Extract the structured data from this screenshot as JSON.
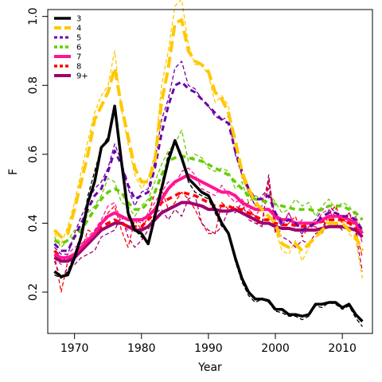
{
  "chart_data": {
    "type": "line",
    "xlabel": "Year",
    "ylabel": "F",
    "xlim": [
      1966,
      2014.5
    ],
    "ylim": [
      0.08,
      1.02
    ],
    "xticks": [
      1970,
      1980,
      1990,
      2000,
      2010
    ],
    "yticks": [
      0.2,
      0.4,
      0.6,
      0.8,
      1.0
    ],
    "xtick_labels": [
      "1970",
      "1980",
      "1990",
      "2000",
      "2010"
    ],
    "ytick_labels": [
      "0.2",
      "0.4",
      "0.6",
      "0.8",
      "1.0"
    ],
    "legend_position": "top-left",
    "grid": false,
    "x": [
      1967,
      1968,
      1969,
      1970,
      1971,
      1972,
      1973,
      1974,
      1975,
      1976,
      1977,
      1978,
      1979,
      1980,
      1981,
      1982,
      1983,
      1984,
      1985,
      1986,
      1987,
      1988,
      1989,
      1990,
      1991,
      1992,
      1993,
      1994,
      1995,
      1996,
      1997,
      1998,
      1999,
      2000,
      2001,
      2002,
      2003,
      2004,
      2005,
      2006,
      2007,
      2008,
      2009,
      2010,
      2011,
      2012,
      2013
    ],
    "series": [
      {
        "name": "3",
        "color": "#000000",
        "dash": "solid",
        "width": 3.5,
        "values": [
          0.26,
          0.245,
          0.25,
          0.3,
          0.36,
          0.46,
          0.52,
          0.62,
          0.64,
          0.74,
          0.58,
          0.43,
          0.38,
          0.37,
          0.34,
          0.42,
          0.5,
          0.58,
          0.64,
          0.59,
          0.53,
          0.51,
          0.49,
          0.48,
          0.44,
          0.4,
          0.37,
          0.3,
          0.24,
          0.2,
          0.18,
          0.18,
          0.175,
          0.15,
          0.15,
          0.135,
          0.135,
          0.13,
          0.135,
          0.165,
          0.165,
          0.17,
          0.17,
          0.155,
          0.165,
          0.135,
          0.115
        ]
      },
      {
        "name": "4",
        "color": "#FFC800",
        "dash": "long",
        "width": 4,
        "values": [
          0.38,
          0.36,
          0.37,
          0.44,
          0.52,
          0.6,
          0.7,
          0.74,
          0.78,
          0.85,
          0.74,
          0.65,
          0.56,
          0.52,
          0.52,
          0.58,
          0.75,
          0.85,
          0.98,
          0.99,
          0.9,
          0.87,
          0.86,
          0.84,
          0.78,
          0.76,
          0.72,
          0.64,
          0.55,
          0.5,
          0.46,
          0.44,
          0.42,
          0.4,
          0.34,
          0.33,
          0.34,
          0.32,
          0.34,
          0.36,
          0.38,
          0.4,
          0.4,
          0.4,
          0.38,
          0.36,
          0.32
        ]
      },
      {
        "name": "5",
        "color": "#6A00A8",
        "dash": "dash",
        "width": 3,
        "values": [
          0.34,
          0.32,
          0.32,
          0.36,
          0.4,
          0.44,
          0.48,
          0.5,
          0.55,
          0.61,
          0.57,
          0.51,
          0.47,
          0.48,
          0.49,
          0.56,
          0.66,
          0.74,
          0.8,
          0.81,
          0.79,
          0.78,
          0.76,
          0.74,
          0.72,
          0.7,
          0.69,
          0.61,
          0.55,
          0.5,
          0.47,
          0.47,
          0.48,
          0.43,
          0.4,
          0.41,
          0.4,
          0.38,
          0.39,
          0.4,
          0.42,
          0.43,
          0.43,
          0.42,
          0.42,
          0.41,
          0.38
        ]
      },
      {
        "name": "6",
        "color": "#66CC00",
        "dash": "dash",
        "width": 3.5,
        "values": [
          0.35,
          0.34,
          0.35,
          0.36,
          0.38,
          0.41,
          0.44,
          0.47,
          0.49,
          0.5,
          0.49,
          0.46,
          0.44,
          0.44,
          0.46,
          0.49,
          0.54,
          0.58,
          0.59,
          0.595,
          0.59,
          0.585,
          0.58,
          0.57,
          0.56,
          0.55,
          0.54,
          0.52,
          0.5,
          0.48,
          0.47,
          0.465,
          0.46,
          0.455,
          0.45,
          0.445,
          0.44,
          0.44,
          0.44,
          0.435,
          0.44,
          0.45,
          0.45,
          0.45,
          0.44,
          0.43,
          0.41
        ]
      },
      {
        "name": "7",
        "color": "#FF1493",
        "dash": "solid",
        "width": 4,
        "values": [
          0.31,
          0.3,
          0.3,
          0.31,
          0.33,
          0.35,
          0.37,
          0.4,
          0.42,
          0.43,
          0.42,
          0.41,
          0.41,
          0.41,
          0.42,
          0.44,
          0.47,
          0.5,
          0.52,
          0.53,
          0.54,
          0.53,
          0.52,
          0.51,
          0.5,
          0.49,
          0.49,
          0.48,
          0.46,
          0.45,
          0.44,
          0.44,
          0.44,
          0.42,
          0.41,
          0.41,
          0.4,
          0.4,
          0.4,
          0.4,
          0.41,
          0.42,
          0.42,
          0.42,
          0.41,
          0.4,
          0.37
        ]
      },
      {
        "name": "8",
        "color": "#FF0000",
        "dash": "dash",
        "width": 3.5,
        "values": [
          0.32,
          0.3,
          0.3,
          0.31,
          0.33,
          0.35,
          0.37,
          0.39,
          0.4,
          0.41,
          0.4,
          0.39,
          0.39,
          0.39,
          0.41,
          0.43,
          0.46,
          0.47,
          0.48,
          0.49,
          0.485,
          0.48,
          0.47,
          0.46,
          0.45,
          0.45,
          0.45,
          0.44,
          0.44,
          0.43,
          0.42,
          0.41,
          0.41,
          0.4,
          0.395,
          0.395,
          0.395,
          0.39,
          0.395,
          0.4,
          0.405,
          0.41,
          0.41,
          0.41,
          0.4,
          0.39,
          0.37
        ]
      },
      {
        "name": "9+",
        "color": "#A0006E",
        "dash": "solid",
        "width": 4,
        "values": [
          0.3,
          0.29,
          0.29,
          0.3,
          0.32,
          0.34,
          0.36,
          0.38,
          0.39,
          0.4,
          0.4,
          0.39,
          0.38,
          0.38,
          0.39,
          0.41,
          0.43,
          0.44,
          0.45,
          0.46,
          0.46,
          0.455,
          0.45,
          0.44,
          0.44,
          0.435,
          0.435,
          0.44,
          0.43,
          0.42,
          0.41,
          0.4,
          0.4,
          0.39,
          0.385,
          0.385,
          0.38,
          0.38,
          0.38,
          0.38,
          0.385,
          0.39,
          0.39,
          0.39,
          0.385,
          0.38,
          0.36
        ]
      }
    ],
    "observed_series": [
      {
        "name": "3",
        "color": "#000000",
        "values": [
          0.25,
          0.24,
          0.26,
          0.31,
          0.37,
          0.48,
          0.55,
          0.62,
          0.65,
          0.74,
          0.57,
          0.42,
          0.38,
          0.36,
          0.34,
          0.43,
          0.51,
          0.6,
          0.64,
          0.6,
          0.52,
          0.49,
          0.48,
          0.47,
          0.43,
          0.39,
          0.37,
          0.29,
          0.23,
          0.19,
          0.17,
          0.18,
          0.17,
          0.145,
          0.14,
          0.13,
          0.13,
          0.12,
          0.13,
          0.16,
          0.155,
          0.17,
          0.165,
          0.15,
          0.16,
          0.125,
          0.1
        ]
      },
      {
        "name": "4",
        "color": "#FFC800",
        "values": [
          0.37,
          0.34,
          0.39,
          0.46,
          0.55,
          0.64,
          0.72,
          0.77,
          0.8,
          0.9,
          0.73,
          0.63,
          0.54,
          0.5,
          0.53,
          0.6,
          0.8,
          0.9,
          1.03,
          1.05,
          0.92,
          0.86,
          0.86,
          0.83,
          0.75,
          0.77,
          0.74,
          0.62,
          0.53,
          0.49,
          0.45,
          0.43,
          0.41,
          0.38,
          0.32,
          0.31,
          0.35,
          0.29,
          0.33,
          0.36,
          0.37,
          0.42,
          0.39,
          0.41,
          0.37,
          0.35,
          0.24
        ]
      },
      {
        "name": "5",
        "color": "#6A00A8",
        "values": [
          0.33,
          0.31,
          0.31,
          0.37,
          0.42,
          0.46,
          0.5,
          0.52,
          0.56,
          0.63,
          0.58,
          0.5,
          0.45,
          0.49,
          0.5,
          0.58,
          0.7,
          0.76,
          0.85,
          0.87,
          0.8,
          0.79,
          0.76,
          0.74,
          0.71,
          0.7,
          0.71,
          0.6,
          0.54,
          0.49,
          0.45,
          0.48,
          0.5,
          0.42,
          0.39,
          0.43,
          0.38,
          0.37,
          0.4,
          0.41,
          0.44,
          0.45,
          0.43,
          0.41,
          0.43,
          0.4,
          0.36
        ]
      },
      {
        "name": "6",
        "color": "#66CC00",
        "values": [
          0.36,
          0.33,
          0.35,
          0.38,
          0.37,
          0.43,
          0.45,
          0.48,
          0.53,
          0.52,
          0.46,
          0.45,
          0.42,
          0.45,
          0.47,
          0.52,
          0.57,
          0.61,
          0.63,
          0.67,
          0.58,
          0.6,
          0.59,
          0.56,
          0.55,
          0.56,
          0.55,
          0.5,
          0.52,
          0.46,
          0.48,
          0.47,
          0.49,
          0.46,
          0.43,
          0.44,
          0.47,
          0.45,
          0.46,
          0.42,
          0.45,
          0.47,
          0.44,
          0.46,
          0.45,
          0.42,
          0.38
        ]
      },
      {
        "name": "7",
        "color": "#FF1493",
        "values": [
          0.3,
          0.28,
          0.31,
          0.33,
          0.34,
          0.36,
          0.38,
          0.41,
          0.45,
          0.46,
          0.4,
          0.38,
          0.41,
          0.4,
          0.43,
          0.46,
          0.49,
          0.52,
          0.51,
          0.55,
          0.56,
          0.54,
          0.5,
          0.49,
          0.48,
          0.51,
          0.48,
          0.46,
          0.47,
          0.44,
          0.42,
          0.45,
          0.53,
          0.41,
          0.4,
          0.43,
          0.39,
          0.41,
          0.38,
          0.4,
          0.43,
          0.44,
          0.42,
          0.41,
          0.4,
          0.42,
          0.34
        ]
      },
      {
        "name": "8",
        "color": "#FF0000",
        "values": [
          0.31,
          0.2,
          0.29,
          0.3,
          0.32,
          0.38,
          0.37,
          0.4,
          0.43,
          0.45,
          0.38,
          0.33,
          0.41,
          0.38,
          0.42,
          0.49,
          0.5,
          0.44,
          0.46,
          0.49,
          0.47,
          0.44,
          0.4,
          0.37,
          0.37,
          0.46,
          0.44,
          0.45,
          0.44,
          0.46,
          0.4,
          0.4,
          0.52,
          0.37,
          0.38,
          0.4,
          0.42,
          0.36,
          0.39,
          0.39,
          0.37,
          0.43,
          0.45,
          0.4,
          0.43,
          0.38,
          0.3
        ]
      },
      {
        "name": "9+",
        "color": "#A0006E",
        "values": [
          0.29,
          0.24,
          0.27,
          0.28,
          0.3,
          0.31,
          0.32,
          0.36,
          0.37,
          0.38,
          0.42,
          0.36,
          0.33,
          0.35,
          0.38,
          0.43,
          0.44,
          0.41,
          0.44,
          0.42,
          0.47,
          0.48,
          0.4,
          0.38,
          0.37,
          0.39,
          0.44,
          0.43,
          0.46,
          0.41,
          0.4,
          0.39,
          0.54,
          0.38,
          0.36,
          0.35,
          0.33,
          0.35,
          0.34,
          0.37,
          0.38,
          0.44,
          0.4,
          0.38,
          0.4,
          0.37,
          0.26
        ]
      }
    ]
  }
}
